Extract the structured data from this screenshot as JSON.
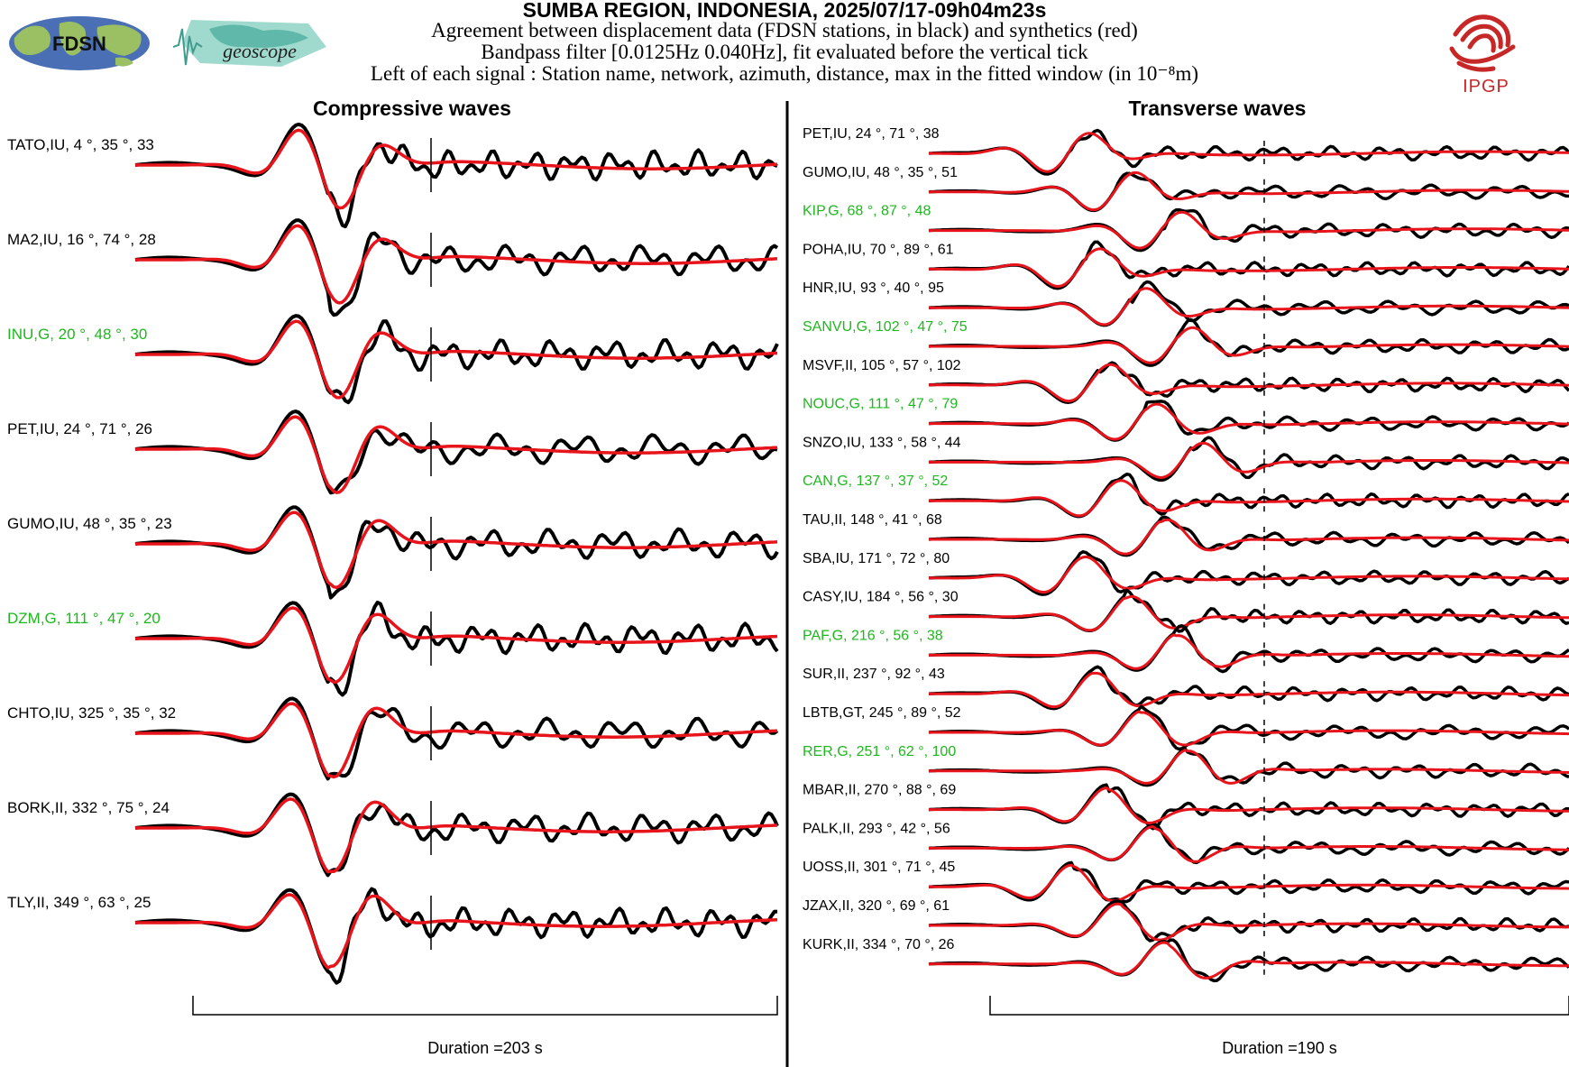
{
  "header": {
    "title": "SUMBA REGION, INDONESIA, 2025/07/17-09h04m23s",
    "line1": "Agreement between displacement data (FDSN stations, in black) and synthetics (red)",
    "line2": "Bandpass filter [0.0125Hz 0.040Hz], fit evaluated before the vertical tick",
    "line3": "Left of each signal : Station name, network, azimuth, distance, max in the fitted window (in 10⁻⁸m)"
  },
  "logos": {
    "fdsn": "FDSN",
    "geoscope": "geoscope",
    "ipgp": "IPGP"
  },
  "colors": {
    "data": "#000000",
    "synthetic": "#e8141c",
    "geoscope_station": "#1db81d",
    "ipgp_red": "#c62828",
    "geoscope_teal": "#5fb8a9"
  },
  "chart_data": [
    {
      "type": "line",
      "title": "Compressive waves",
      "duration_label": "Duration =203 s",
      "series": [
        "data",
        "synthetic"
      ],
      "stations": [
        {
          "label": "TATO,IU, 4 °, 35 °, 33",
          "geoscope": false
        },
        {
          "label": "MA2,IU, 16 °, 74 °, 28",
          "geoscope": false
        },
        {
          "label": "INU,G, 20 °, 48 °, 30",
          "geoscope": true
        },
        {
          "label": "PET,IU, 24 °, 71 °, 26",
          "geoscope": false
        },
        {
          "label": "GUMO,IU, 48 °, 35 °, 23",
          "geoscope": false
        },
        {
          "label": "DZM,G, 111 °, 47 °, 20",
          "geoscope": true
        },
        {
          "label": "CHTO,IU, 325 °, 35 °, 32",
          "geoscope": false
        },
        {
          "label": "BORK,II, 332 °, 75 °, 24",
          "geoscope": false
        },
        {
          "label": "TLY,II, 349 °, 63 °, 25",
          "geoscope": false
        }
      ]
    },
    {
      "type": "line",
      "title": "Transverse waves",
      "duration_label": "Duration =190 s",
      "series": [
        "data",
        "synthetic"
      ],
      "stations": [
        {
          "label": "PET,IU, 24 °, 71 °, 38",
          "geoscope": false
        },
        {
          "label": "GUMO,IU, 48 °, 35 °, 51",
          "geoscope": false
        },
        {
          "label": "KIP,G, 68 °, 87 °, 48",
          "geoscope": true
        },
        {
          "label": "POHA,IU, 70 °, 89 °, 61",
          "geoscope": false
        },
        {
          "label": "HNR,IU, 93 °, 40 °, 95",
          "geoscope": false
        },
        {
          "label": "SANVU,G, 102 °, 47 °, 75",
          "geoscope": true
        },
        {
          "label": "MSVF,II, 105 °, 57 °, 102",
          "geoscope": false
        },
        {
          "label": "NOUC,G, 111 °, 47 °, 79",
          "geoscope": true
        },
        {
          "label": "SNZO,IU, 133 °, 58 °, 44",
          "geoscope": false
        },
        {
          "label": "CAN,G, 137 °, 37 °, 52",
          "geoscope": true
        },
        {
          "label": "TAU,II, 148 °, 41 °, 68",
          "geoscope": false
        },
        {
          "label": "SBA,IU, 171 °, 72 °, 80",
          "geoscope": false
        },
        {
          "label": "CASY,IU, 184 °, 56 °, 30",
          "geoscope": false
        },
        {
          "label": "PAF,G, 216 °, 56 °, 38",
          "geoscope": true
        },
        {
          "label": "SUR,II, 237 °, 92 °, 43",
          "geoscope": false
        },
        {
          "label": "LBTB,GT, 245 °, 89 °, 52",
          "geoscope": false
        },
        {
          "label": "RER,G, 251 °, 62 °, 100",
          "geoscope": true
        },
        {
          "label": "MBAR,II, 270 °, 88 °, 69",
          "geoscope": false
        },
        {
          "label": "PALK,II, 293 °, 42 °, 56",
          "geoscope": false
        },
        {
          "label": "UOSS,II, 301 °, 71 °, 45",
          "geoscope": false
        },
        {
          "label": "JZAX,II, 320 °, 69 °, 61",
          "geoscope": false
        },
        {
          "label": "KURK,II, 334 °, 70 °, 26",
          "geoscope": false
        }
      ]
    }
  ]
}
